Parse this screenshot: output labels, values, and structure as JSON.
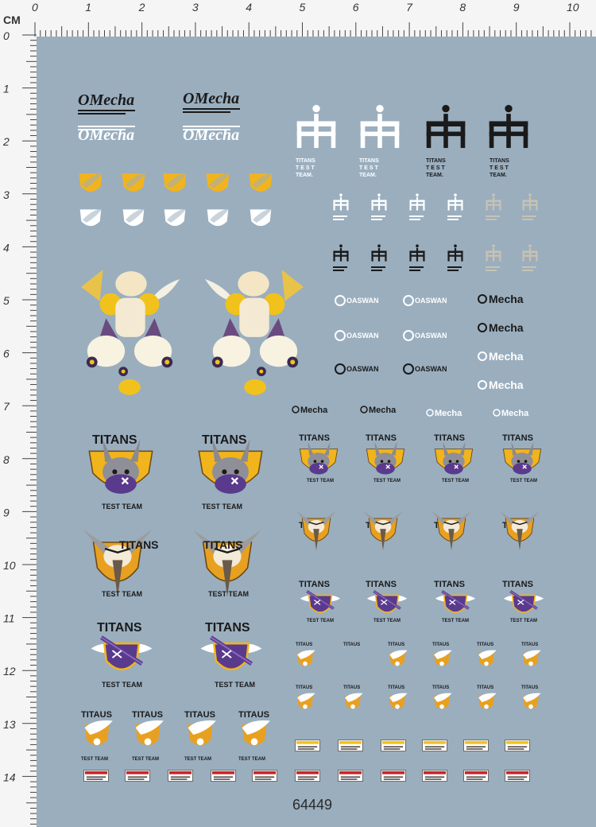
{
  "ruler": {
    "unit": "CM",
    "top_numbers": [
      "0",
      "1",
      "2",
      "3",
      "4",
      "5",
      "6",
      "7",
      "8",
      "9",
      "10"
    ],
    "left_numbers": [
      "0",
      "1",
      "2",
      "3",
      "4",
      "5",
      "6",
      "7",
      "8",
      "9",
      "10",
      "11",
      "12",
      "13",
      "14"
    ]
  },
  "colors": {
    "sheet": "#9aaebe",
    "white": "#ffffff",
    "black": "#1a1a1a",
    "yellow": "#f2b41c",
    "purple": "#5a3a8c",
    "orange": "#e8a020",
    "gray": "#c9c2b2",
    "red": "#c8262a"
  },
  "text": {
    "omecha": "OMecha",
    "titans": "TITANS",
    "titaus": "TITAUS",
    "titans_stacked": [
      "TITANS",
      "T E S T",
      "TEAM."
    ],
    "test_team": "TEST TEAM",
    "oaswan": "OASWAN",
    "mecha": "Mecha",
    "sheet_number": "64449"
  },
  "icons": {
    "trident": "trident-logo-icon",
    "shield_bird": "shield-bird-icon",
    "mecha_girl": "winged-mecha-girl-illustration",
    "emblem_bunny": "titans-bunny-emblem",
    "emblem_eagle": "titans-eagle-emblem",
    "emblem_rifle": "titans-rifle-emblem",
    "winged_shield": "winged-shield-icon",
    "warning_label": "warning-label-icon"
  }
}
